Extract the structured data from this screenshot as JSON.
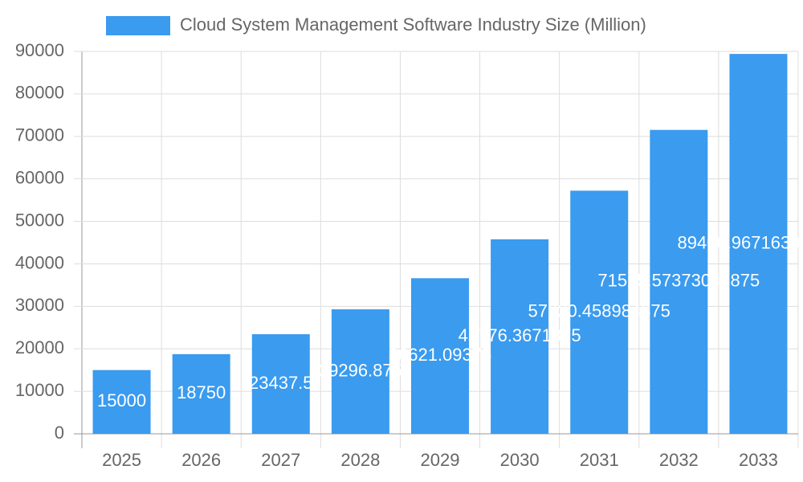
{
  "chart_data": {
    "type": "bar",
    "categories": [
      "2025",
      "2026",
      "2027",
      "2028",
      "2029",
      "2030",
      "2031",
      "2032",
      "2033"
    ],
    "series": [
      {
        "name": "Cloud System Management Software Industry Size (Million)",
        "color": "#3a9bef",
        "values": [
          15000,
          18750,
          23437.5,
          29296.875,
          36621.09375,
          45776.3671875,
          57220.458984375,
          71525.57373046875,
          89406.96716308594
        ]
      }
    ],
    "ylim": [
      0,
      90000
    ],
    "yticks": [
      0,
      10000,
      20000,
      30000,
      40000,
      50000,
      60000,
      70000,
      80000,
      90000
    ],
    "grid": true,
    "legend": "top"
  }
}
